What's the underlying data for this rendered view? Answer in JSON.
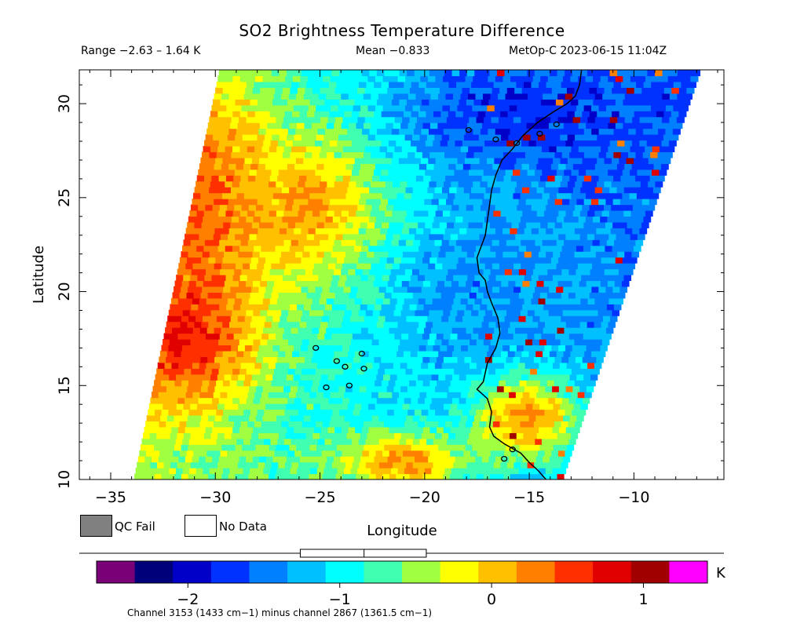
{
  "chart_data": {
    "type": "heatmap",
    "title": "SO2 Brightness Temperature Difference",
    "info_range": "Range −2.63 – 1.64 K",
    "info_mean": "Mean −0.833",
    "info_satellite": "MetOp-C 2023-06-15 11:04Z",
    "xlabel": "Longitude",
    "ylabel": "Latitude",
    "xlim": [
      -36.5,
      -5.7
    ],
    "ylim": [
      10,
      31.8
    ],
    "xticks": [
      -35,
      -30,
      -25,
      -20,
      -15,
      -10
    ],
    "xtick_labels": [
      "−35",
      "−30",
      "−25",
      "−20",
      "−15",
      "−10"
    ],
    "yticks": [
      10,
      15,
      20,
      25,
      30
    ],
    "ytick_labels": [
      "10",
      "15",
      "20",
      "25",
      "30"
    ],
    "swath": {
      "west_edge": [
        [
          -33.9,
          10
        ],
        [
          -29.8,
          31.8
        ]
      ],
      "east_edge": [
        [
          -13.4,
          10
        ],
        [
          -6.8,
          31.8
        ]
      ]
    },
    "field_regions": [
      {
        "description_value": 0.8,
        "center": [
          -31.5,
          17.8
        ],
        "lon_radius": 3.2,
        "lat_radius": 4.0
      },
      {
        "description_value": 0.5,
        "center": [
          -30.5,
          25.0
        ],
        "lon_radius": 3.0,
        "lat_radius": 6.0
      },
      {
        "description_value": 0.2,
        "center": [
          -25.5,
          24.5
        ],
        "lon_radius": 4.0,
        "lat_radius": 4.0
      },
      {
        "description_value": -1.8,
        "center": [
          -15.5,
          29.5
        ],
        "lon_radius": 6.0,
        "lat_radius": 3.5
      },
      {
        "description_value": 0.5,
        "center": [
          -15.2,
          13.5
        ],
        "lon_radius": 2.5,
        "lat_radius": 2.5
      },
      {
        "description_value": 0.3,
        "center": [
          -21.0,
          11.0
        ],
        "lon_radius": 3.0,
        "lat_radius": 1.5
      },
      {
        "description_value": -1.4,
        "center": [
          -17.0,
          20.0
        ],
        "lon_radius": 4.5,
        "lat_radius": 5.0
      }
    ],
    "colorbar": {
      "min": -2.35,
      "max": 1.17,
      "ticks": [
        -2,
        -1,
        0,
        1
      ],
      "tick_labels": [
        "−2",
        "−1",
        "0",
        "1"
      ],
      "unit": "K",
      "colors": [
        "#7a0077",
        "#00007a",
        "#0000c8",
        "#0032ff",
        "#0080ff",
        "#00c0ff",
        "#00ffff",
        "#40ffb0",
        "#a0ff40",
        "#ffff00",
        "#ffc000",
        "#ff8000",
        "#ff3000",
        "#e00000",
        "#a00000",
        "#ff00ff"
      ],
      "box_mean": -0.84,
      "box_q1": -1.26,
      "box_q3": -0.43
    },
    "legend": [
      {
        "label": "QC Fail",
        "color": "#808080"
      },
      {
        "label": "No Data",
        "color": "#ffffff"
      }
    ],
    "footnote": "Channel 3153 (1433 cm−1) minus channel 2867 (1361.5 cm−1)"
  }
}
